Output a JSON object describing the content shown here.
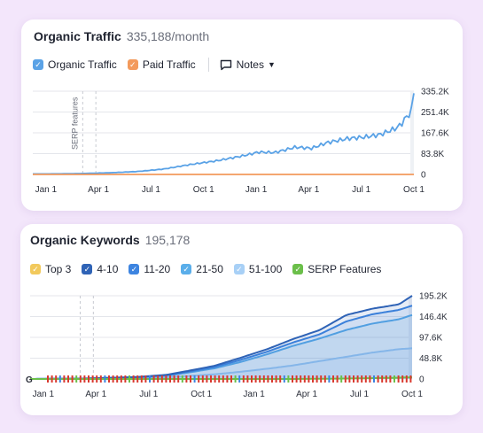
{
  "traffic": {
    "title": "Organic Traffic",
    "value": "335,188/month",
    "legend": [
      {
        "label": "Organic Traffic",
        "color": "#5aa2e6",
        "checked": true
      },
      {
        "label": "Paid Traffic",
        "color": "#f39a5c",
        "checked": true
      }
    ],
    "notes_label": "Notes",
    "event_label": "SERP features"
  },
  "keywords": {
    "title": "Organic Keywords",
    "value": "195,178",
    "legend": [
      {
        "label": "Top 3",
        "color": "#f2c95c",
        "checked": true
      },
      {
        "label": "4-10",
        "color": "#2f63b6",
        "checked": true
      },
      {
        "label": "11-20",
        "color": "#3d84e0",
        "checked": true
      },
      {
        "label": "21-50",
        "color": "#5aaeea",
        "checked": true
      },
      {
        "label": "51-100",
        "color": "#a8d0f6",
        "checked": true
      },
      {
        "label": "SERP Features",
        "color": "#6bbf4a",
        "checked": true
      }
    ]
  },
  "chart_data": [
    {
      "type": "line",
      "title": "Organic Traffic",
      "x_tick_labels": [
        "Jan 1",
        "Apr 1",
        "Jul 1",
        "Oct 1",
        "Jan 1",
        "Apr 1",
        "Jul 1",
        "Oct 1"
      ],
      "y_tick_labels": [
        "335.2K",
        "251.4K",
        "167.6K",
        "83.8K",
        "0"
      ],
      "ylim": [
        0,
        335200
      ],
      "grid": true,
      "series": [
        {
          "name": "Organic Traffic",
          "color": "#5aa2e6",
          "x": [
            0,
            0.5,
            1,
            1.5,
            2,
            2.5,
            3,
            3.5,
            4,
            4.3,
            4.6,
            5,
            5.3,
            5.6,
            6,
            6.3,
            6.6,
            6.9,
            7,
            7.1,
            7.2,
            7.25
          ],
          "values": [
            2000,
            2500,
            4000,
            7000,
            12000,
            22000,
            40000,
            55000,
            75000,
            90000,
            88000,
            110000,
            105000,
            128000,
            145000,
            150000,
            160000,
            185000,
            200000,
            230000,
            250000,
            335188
          ]
        },
        {
          "name": "Paid Traffic",
          "color": "#f39a5c",
          "x": [
            0,
            7.25
          ],
          "values": [
            0,
            0
          ]
        }
      ]
    },
    {
      "type": "area",
      "title": "Organic Keywords",
      "x_tick_labels": [
        "Jan 1",
        "Apr 1",
        "Jul 1",
        "Oct 1",
        "Jan 1",
        "Apr 1",
        "Jul 1",
        "Oct 1"
      ],
      "y_tick_labels": [
        "195.2K",
        "146.4K",
        "97.6K",
        "48.8K",
        "0"
      ],
      "ylim": [
        0,
        195200
      ],
      "grid": true,
      "series": [
        {
          "name": "51-100",
          "color": "#a8d0f6",
          "x": [
            0,
            1,
            2,
            2.6,
            3,
            3.5,
            4,
            4.5,
            5,
            5.5,
            6,
            6.5,
            7,
            7.25
          ],
          "values": [
            0,
            500,
            2000,
            4000,
            7000,
            11000,
            17000,
            24000,
            32000,
            42000,
            52000,
            62000,
            70000,
            72000
          ]
        },
        {
          "name": "21-50",
          "color": "#5aaeea",
          "x": [
            0,
            1,
            2,
            2.6,
            3,
            3.5,
            4,
            4.5,
            5,
            5.5,
            6,
            6.5,
            7,
            7.25
          ],
          "values": [
            0,
            800,
            3500,
            8000,
            15000,
            25000,
            40000,
            58000,
            78000,
            95000,
            115000,
            130000,
            140000,
            150000
          ]
        },
        {
          "name": "11-20",
          "color": "#3d84e0",
          "x": [
            0,
            1,
            2,
            2.6,
            3,
            3.5,
            4,
            4.5,
            5,
            5.5,
            6,
            6.5,
            7,
            7.25
          ],
          "values": [
            0,
            900,
            4000,
            9000,
            17000,
            28000,
            45000,
            64000,
            86000,
            105000,
            135000,
            152000,
            162000,
            172000
          ]
        },
        {
          "name": "4-10",
          "color": "#2f63b6",
          "x": [
            0,
            1,
            2,
            2.6,
            3,
            3.5,
            4,
            4.5,
            5,
            5.5,
            6,
            6.5,
            7,
            7.25
          ],
          "values": [
            0,
            1000,
            4500,
            10000,
            19000,
            31000,
            50000,
            70000,
            94000,
            115000,
            150000,
            165000,
            175000,
            195178
          ]
        },
        {
          "name": "SERP Features",
          "color": "#6bbf4a",
          "x": [
            0,
            5,
            6,
            7,
            7.25
          ],
          "values": [
            0,
            0,
            1000,
            3000,
            4000
          ]
        }
      ]
    }
  ]
}
